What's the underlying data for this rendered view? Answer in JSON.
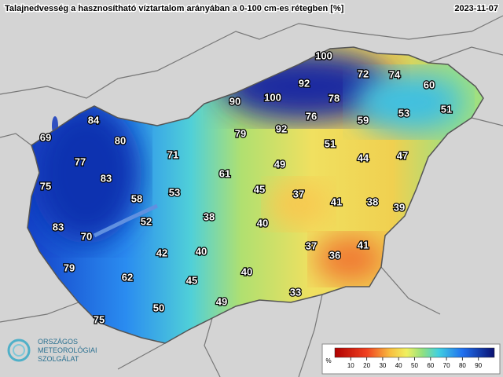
{
  "header": {
    "title": "Talajnedvesség a hasznosítható víztartalom arányában a 0-100 cm-es rétegben [%]",
    "date": "2023-11-07"
  },
  "stations": [
    69,
    84,
    80,
    77,
    83,
    75,
    71,
    58,
    53,
    52,
    83,
    70,
    61,
    79,
    90,
    100,
    92,
    100,
    92,
    78,
    76,
    72,
    74,
    60,
    51,
    53,
    59,
    51,
    49,
    44,
    47,
    45,
    37,
    41,
    38,
    39,
    38,
    40,
    42,
    40,
    37,
    36,
    41,
    79,
    62,
    45,
    40,
    33,
    49,
    50,
    75
  ],
  "legend": {
    "unit": "%",
    "range": [
      0,
      100
    ],
    "ticks": [
      10,
      20,
      30,
      40,
      50,
      60,
      70,
      80,
      90
    ]
  },
  "logo": {
    "lines": [
      "ORSZÁGOS",
      "METEOROLÓGIAI",
      "SZOLGÁLAT"
    ]
  }
}
